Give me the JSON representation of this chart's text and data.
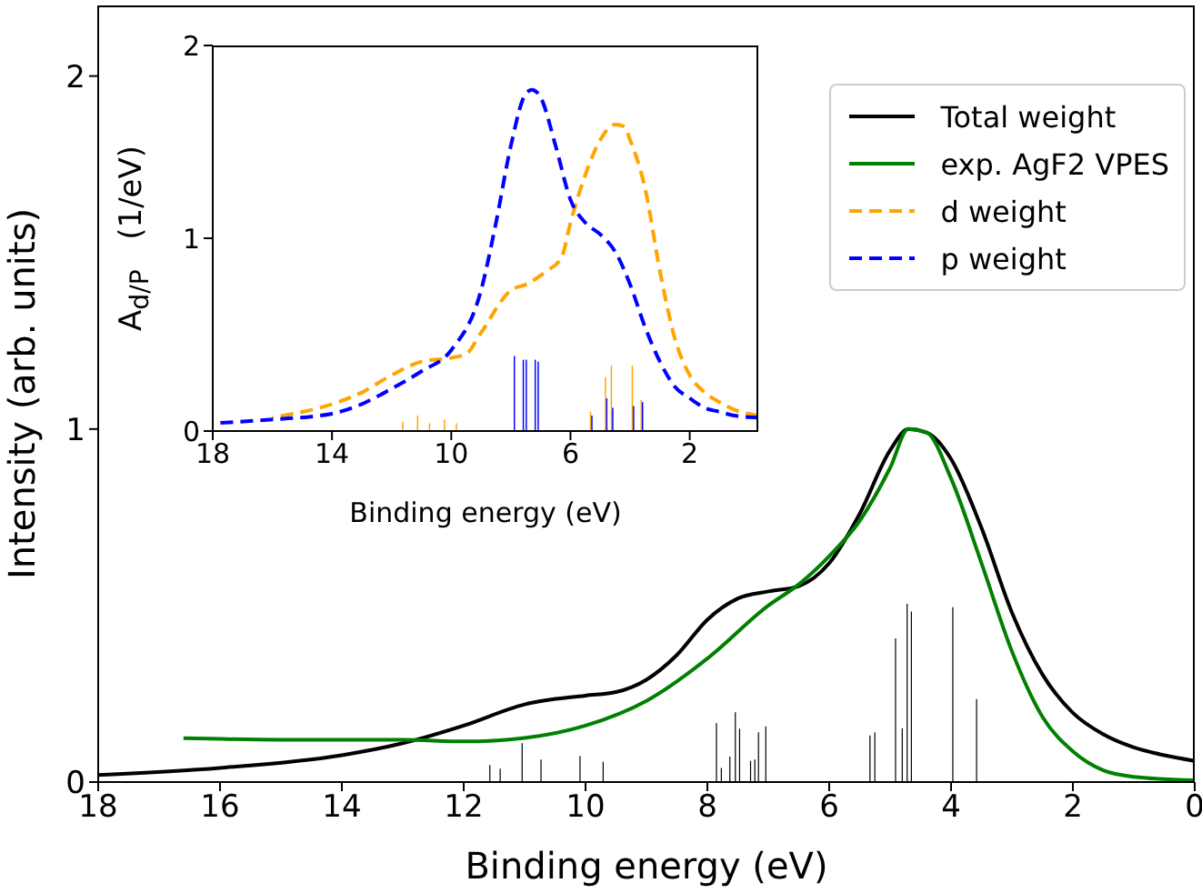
{
  "chart_data": [
    {
      "type": "line",
      "xlabel": "Binding energy (eV)",
      "ylabel": "Intensity (arb. units)",
      "xlim": [
        18,
        0
      ],
      "xticks": [
        18,
        16,
        14,
        12,
        10,
        8,
        6,
        4,
        2,
        0
      ],
      "ylim": [
        0,
        2.2
      ],
      "yticks": [
        0,
        1,
        2
      ],
      "grid": false,
      "legend": "top right",
      "series": [
        {
          "name": "Total weight",
          "color": "#000000",
          "line_style": "solid",
          "x": [
            18,
            16,
            14,
            13,
            12,
            11,
            10,
            9.5,
            9,
            8.5,
            8,
            7.5,
            7,
            6.5,
            6,
            5.5,
            5,
            4.7,
            4.4,
            4,
            3.5,
            3,
            2.5,
            2,
            1.5,
            1,
            0.5,
            0
          ],
          "values": [
            0.02,
            0.04,
            0.076,
            0.11,
            0.16,
            0.22,
            0.245,
            0.255,
            0.29,
            0.36,
            0.46,
            0.52,
            0.54,
            0.555,
            0.62,
            0.76,
            0.94,
            1.0,
            0.99,
            0.915,
            0.72,
            0.48,
            0.305,
            0.196,
            0.135,
            0.098,
            0.076,
            0.06
          ]
        },
        {
          "name": "exp. AgF2 VPES",
          "color": "#008000",
          "line_style": "solid",
          "x": [
            16.6,
            15,
            13,
            12,
            11,
            10,
            9,
            8,
            7,
            6.5,
            6,
            5.5,
            5,
            4.7,
            4.4,
            4,
            3.5,
            3,
            2.5,
            2,
            1.5,
            1,
            0
          ],
          "values": [
            0.124,
            0.12,
            0.12,
            0.115,
            0.125,
            0.16,
            0.23,
            0.35,
            0.5,
            0.56,
            0.64,
            0.74,
            0.89,
            1.0,
            0.99,
            0.86,
            0.62,
            0.37,
            0.185,
            0.087,
            0.033,
            0.015,
            0.005
          ]
        },
        {
          "type": "bar",
          "color": "#000000",
          "x": [
            11.57,
            11.4,
            11.04,
            10.73,
            10.09,
            9.71,
            7.85,
            7.77,
            7.63,
            7.54,
            7.47,
            7.29,
            7.22,
            7.16,
            7.04,
            5.33,
            5.25,
            4.91,
            4.8,
            4.72,
            4.65,
            3.97,
            3.58
          ],
          "values": [
            0.048,
            0.038,
            0.11,
            0.064,
            0.074,
            0.057,
            0.167,
            0.04,
            0.072,
            0.198,
            0.151,
            0.06,
            0.064,
            0.141,
            0.158,
            0.132,
            0.141,
            0.407,
            0.152,
            0.505,
            0.483,
            0.495,
            0.235
          ]
        }
      ]
    },
    {
      "type": "line",
      "xlabel": "Binding energy (eV)",
      "ylabel": "A$_{d/P}$   (1/eV)",
      "xlim": [
        18,
        -0.3
      ],
      "xticks": [
        18,
        14,
        10,
        6,
        2
      ],
      "ylim": [
        0,
        2
      ],
      "yticks": [
        0,
        1,
        2
      ],
      "grid": false,
      "series": [
        {
          "type": "bar",
          "color": "#ffa500",
          "x": [
            11.6,
            11.1,
            10.7,
            10.2,
            9.8,
            5.3,
            4.8,
            4.6,
            3.9,
            3.6
          ],
          "values": [
            0.05,
            0.08,
            0.04,
            0.06,
            0.04,
            0.1,
            0.28,
            0.34,
            0.34,
            0.16
          ]
        },
        {
          "type": "bar",
          "color": "#0000ff",
          "x": [
            7.9,
            7.6,
            7.5,
            7.2,
            7.1,
            5.3,
            4.8,
            4.6,
            3.9,
            3.6
          ],
          "values": [
            0.39,
            0.37,
            0.37,
            0.37,
            0.36,
            0.08,
            0.17,
            0.12,
            0.13,
            0.15
          ]
        },
        {
          "name": "d weight",
          "color": "#ffa500",
          "line_style": "dashed",
          "x": [
            16,
            14,
            13,
            12,
            11,
            10,
            9.5,
            9,
            8,
            7.5,
            6.8,
            6.3,
            6,
            5.5,
            5,
            4.5,
            4.2,
            4,
            3.5,
            3,
            2.5,
            2,
            1.5,
            1,
            0.5,
            -0.3
          ],
          "values": [
            0.07,
            0.14,
            0.2,
            0.29,
            0.36,
            0.38,
            0.4,
            0.51,
            0.73,
            0.76,
            0.83,
            0.9,
            1.08,
            1.33,
            1.51,
            1.59,
            1.58,
            1.51,
            1.26,
            0.83,
            0.48,
            0.29,
            0.2,
            0.15,
            0.11,
            0.08
          ]
        },
        {
          "name": "p weight",
          "color": "#0000ff",
          "line_style": "dashed",
          "x": [
            18,
            16,
            14,
            13,
            12,
            11,
            10,
            9,
            8.5,
            8,
            7.5,
            7.3,
            7,
            6.5,
            6,
            5.5,
            5,
            4.5,
            4,
            3.5,
            3,
            2.5,
            2,
            1.5,
            1,
            0.5,
            -0.3
          ],
          "values": [
            0.04,
            0.06,
            0.09,
            0.14,
            0.22,
            0.31,
            0.42,
            0.73,
            1.08,
            1.48,
            1.75,
            1.77,
            1.73,
            1.48,
            1.2,
            1.08,
            1.02,
            0.93,
            0.76,
            0.54,
            0.36,
            0.23,
            0.17,
            0.12,
            0.1,
            0.08,
            0.07
          ]
        }
      ]
    }
  ]
}
